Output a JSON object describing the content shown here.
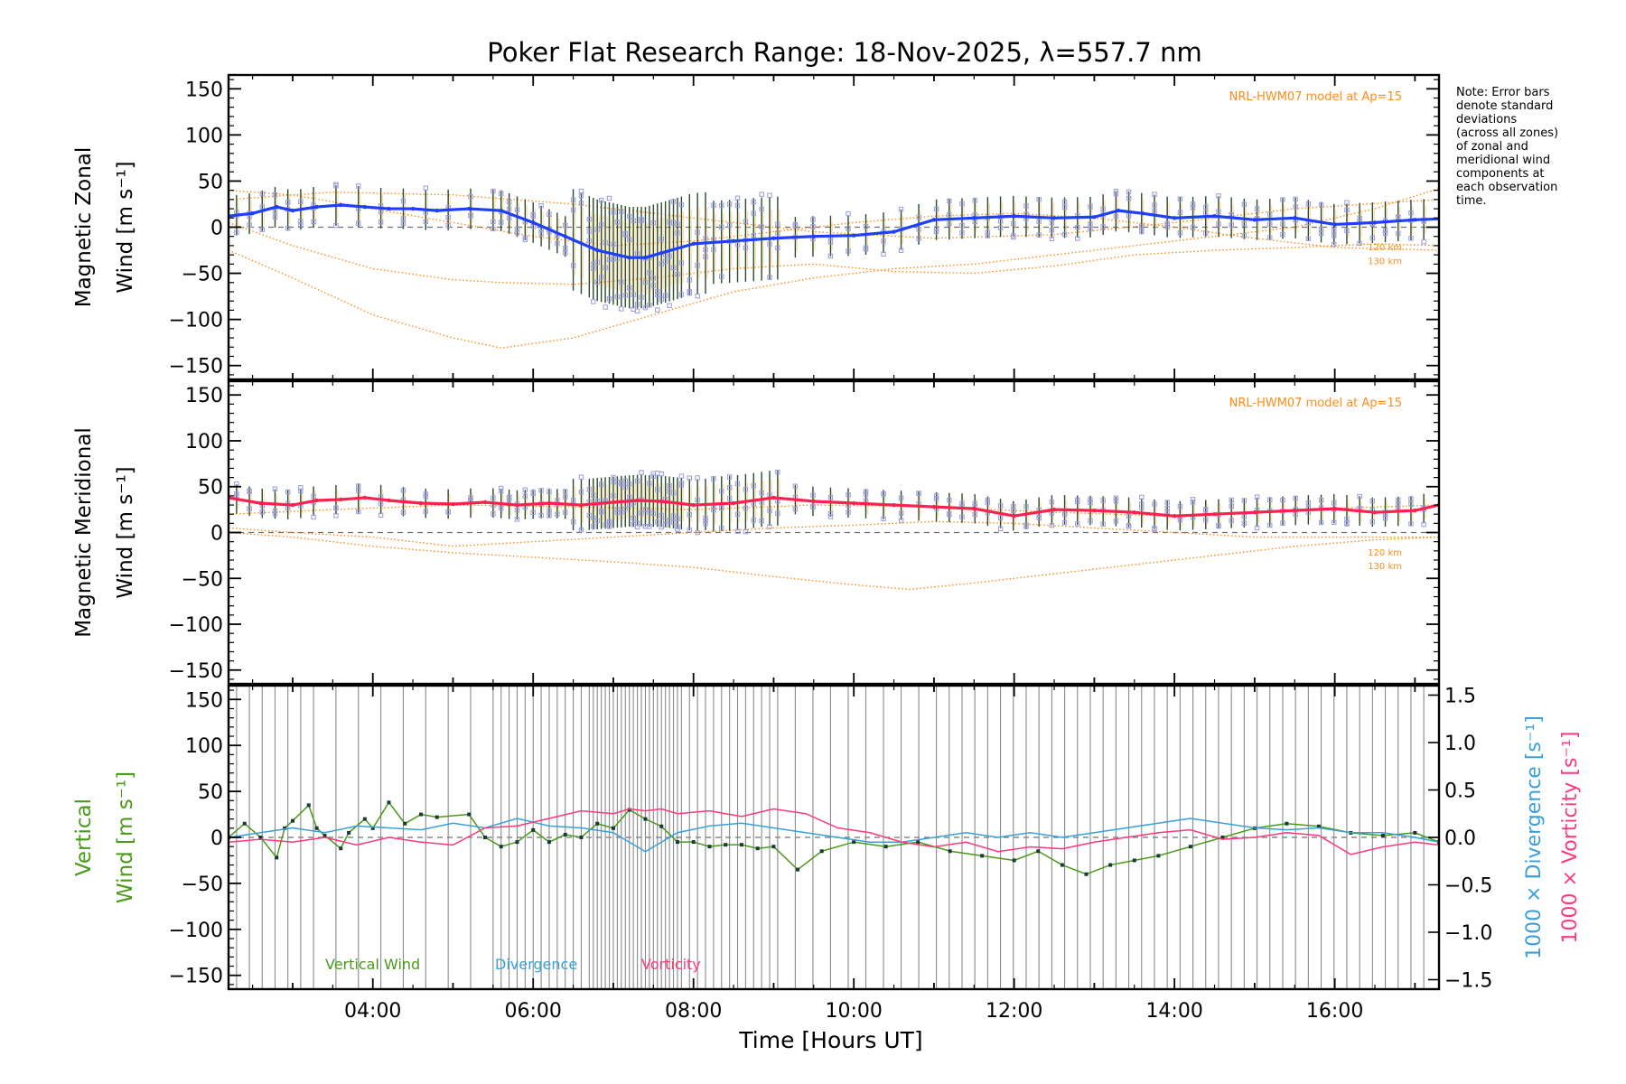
{
  "title": "Poker Flat Research Range: 18-Nov-2025, λ=557.7 nm",
  "note": [
    "Note: Error bars",
    "denote standard",
    "deviations",
    "(across all zones)",
    "of zonal and",
    "meridional wind",
    "components at",
    "each observation",
    "time."
  ],
  "xlabel": "Time [Hours UT]",
  "xticks": [
    "04:00",
    "06:00",
    "08:00",
    "10:00",
    "12:00",
    "14:00",
    "16:00"
  ],
  "colors": {
    "axis": "#000000",
    "model": "#ff8c1a",
    "zonal": "#1f3fff",
    "zonal_light": "#4fa8e0",
    "meridional": "#ff2050",
    "vertical": "#4a9a1a",
    "divergence": "#3aa0d8",
    "vorticity": "#ff3a78",
    "zones": "#9b9bdc",
    "errbar": "#2b4a2b",
    "ortho": "#ffd27a",
    "grid": "#707070"
  },
  "chart_data": [
    {
      "type": "line",
      "panel": "zonal",
      "ylabel_lines": [
        "Magnetic Zonal",
        "Wind [m s⁻¹]"
      ],
      "ylim": [
        -165,
        165
      ],
      "xlim": [
        2.2,
        17.3
      ],
      "yticks": [
        "150",
        "100",
        "50",
        "0",
        "−50",
        "−100",
        "−150"
      ],
      "model_label": "NRL-HWM07 model at Ap=15",
      "model_alt_labels": [
        "120 km",
        "130 km"
      ],
      "series": [
        {
          "name": "Magnetic Zonal Wind",
          "x": [
            2.2,
            2.5,
            2.8,
            3.0,
            3.3,
            3.6,
            3.9,
            4.2,
            4.5,
            4.8,
            5.2,
            5.6,
            6.0,
            6.4,
            6.8,
            7.2,
            7.4,
            7.6,
            8.0,
            8.5,
            9.0,
            9.5,
            10.0,
            10.5,
            11.0,
            11.5,
            12.0,
            12.5,
            13.0,
            13.3,
            13.6,
            14.0,
            14.5,
            15.0,
            15.5,
            16.0,
            16.5,
            17.0,
            17.3
          ],
          "values": [
            12,
            15,
            22,
            18,
            22,
            24,
            22,
            20,
            20,
            18,
            20,
            18,
            5,
            -10,
            -25,
            -33,
            -33,
            -28,
            -18,
            -15,
            -12,
            -10,
            -9,
            -5,
            8,
            10,
            12,
            10,
            11,
            18,
            15,
            10,
            12,
            8,
            10,
            3,
            5,
            8,
            9
          ]
        }
      ],
      "models": [
        {
          "name": "120 km",
          "x": [
            2.2,
            3.0,
            4.0,
            5.0,
            6.0,
            7.0,
            8.0,
            9.0,
            10.0,
            11.0,
            12.0,
            13.0,
            14.0,
            15.0,
            16.0,
            17.3
          ],
          "values": [
            40,
            35,
            20,
            5,
            -10,
            -20,
            -15,
            -5,
            5,
            12,
            15,
            10,
            0,
            -12,
            -22,
            -25
          ]
        },
        {
          "name": "130 km",
          "x": [
            2.2,
            3.0,
            4.0,
            5.0,
            5.6,
            6.5,
            7.5,
            8.5,
            9.5,
            10.5,
            11.5,
            12.5,
            13.5,
            14.5,
            15.5,
            16.5,
            17.3
          ],
          "values": [
            -25,
            -55,
            -95,
            -120,
            -131,
            -120,
            -95,
            -70,
            -55,
            -45,
            -40,
            -30,
            -20,
            -10,
            0,
            20,
            42
          ]
        },
        {
          "name": "model-3",
          "x": [
            2.2,
            3.0,
            4.0,
            5.0,
            5.6,
            6.5,
            7.5,
            8.5,
            9.5,
            10.5,
            11.5,
            12.5,
            13.5,
            14.5,
            15.5,
            16.5,
            17.3
          ],
          "values": [
            5,
            -20,
            -45,
            -57,
            -60,
            -62,
            -55,
            -45,
            -40,
            -48,
            -50,
            -42,
            -30,
            -25,
            -22,
            -18,
            -20
          ]
        },
        {
          "name": "model-4",
          "x": [
            2.2,
            3.5,
            5.0,
            6.5,
            8.0,
            9.5,
            11.0,
            12.5,
            14.0,
            15.5,
            17.3
          ],
          "values": [
            30,
            38,
            35,
            25,
            10,
            -5,
            -12,
            -8,
            5,
            20,
            30
          ]
        }
      ]
    },
    {
      "type": "line",
      "panel": "meridional",
      "ylabel_lines": [
        "Magnetic Meridional",
        "Wind [m s⁻¹]"
      ],
      "ylim": [
        -165,
        165
      ],
      "xlim": [
        2.2,
        17.3
      ],
      "yticks": [
        "150",
        "100",
        "50",
        "0",
        "−50",
        "−100",
        "−150"
      ],
      "model_label": "NRL-HWM07 model at Ap=15",
      "model_alt_labels": [
        "120 km",
        "130 km"
      ],
      "series": [
        {
          "name": "Magnetic Meridional Wind",
          "x": [
            2.2,
            2.6,
            3.0,
            3.3,
            3.6,
            3.9,
            4.2,
            4.6,
            5.0,
            5.4,
            5.8,
            6.2,
            6.6,
            7.0,
            7.3,
            7.6,
            8.0,
            8.5,
            9.0,
            9.5,
            10.0,
            10.5,
            11.0,
            11.5,
            12.0,
            12.5,
            13.0,
            13.5,
            14.0,
            14.5,
            15.0,
            15.5,
            16.0,
            16.5,
            17.0,
            17.3
          ],
          "values": [
            38,
            32,
            30,
            35,
            36,
            38,
            35,
            32,
            31,
            33,
            30,
            32,
            30,
            33,
            35,
            34,
            30,
            32,
            38,
            34,
            32,
            30,
            28,
            26,
            18,
            25,
            24,
            22,
            18,
            20,
            22,
            24,
            26,
            22,
            24,
            30
          ]
        }
      ],
      "models": [
        {
          "name": "120 km",
          "x": [
            2.2,
            3.0,
            4.0,
            5.0,
            6.0,
            7.0,
            8.0,
            9.0,
            10.0,
            11.0,
            12.0,
            13.0,
            14.0,
            15.0,
            16.0,
            17.3
          ],
          "values": [
            5,
            0,
            -5,
            -15,
            -10,
            -5,
            0,
            5,
            8,
            12,
            10,
            5,
            0,
            -5,
            -5,
            -5
          ]
        },
        {
          "name": "130 km",
          "x": [
            2.2,
            3.0,
            4.0,
            5.0,
            6.0,
            7.0,
            8.0,
            9.0,
            10.0,
            10.7,
            11.5,
            12.5,
            13.5,
            14.5,
            15.5,
            16.5,
            17.3
          ],
          "values": [
            0,
            -5,
            -15,
            -22,
            -27,
            -32,
            -38,
            -48,
            -57,
            -62,
            -55,
            -45,
            -35,
            -25,
            -15,
            -8,
            -5
          ]
        },
        {
          "name": "model-3",
          "x": [
            2.2,
            3.5,
            5.0,
            6.5,
            8.0,
            9.5,
            11.0,
            12.5,
            14.0,
            15.5,
            17.3
          ],
          "values": [
            20,
            25,
            30,
            28,
            25,
            30,
            28,
            22,
            18,
            25,
            30
          ]
        }
      ]
    },
    {
      "type": "line",
      "panel": "vertical",
      "ylabel_lines": [
        "Vertical",
        "Wind [m s⁻¹]"
      ],
      "y2label_lines": [
        "1000 × Divergence [s⁻¹]",
        "1000 × Vorticity [s⁻¹]"
      ],
      "ylim": [
        -165,
        165
      ],
      "y2lim": [
        -1.6,
        1.6
      ],
      "xlim": [
        2.2,
        17.3
      ],
      "yticks": [
        "150",
        "100",
        "50",
        "0",
        "−50",
        "−100",
        "−150"
      ],
      "y2ticks": [
        "1.5",
        "1.0",
        "0.5",
        "0.0",
        "−0.5",
        "−1.0",
        "−1.5"
      ],
      "legend": [
        "Vertical Wind",
        "Divergence",
        "Vorticity"
      ],
      "series": [
        {
          "name": "Vertical Wind",
          "axis": "left",
          "x": [
            2.2,
            2.4,
            2.6,
            2.8,
            2.9,
            3.0,
            3.2,
            3.3,
            3.4,
            3.6,
            3.7,
            3.9,
            4.0,
            4.2,
            4.4,
            4.6,
            4.8,
            5.2,
            5.4,
            5.6,
            5.8,
            6.0,
            6.2,
            6.4,
            6.6,
            6.8,
            7.0,
            7.2,
            7.4,
            7.6,
            7.8,
            8.0,
            8.2,
            8.4,
            8.6,
            8.8,
            9.0,
            9.3,
            9.6,
            10.0,
            10.4,
            10.8,
            11.2,
            11.6,
            12.0,
            12.3,
            12.6,
            12.9,
            13.2,
            13.5,
            13.8,
            14.2,
            14.6,
            15.0,
            15.4,
            15.8,
            16.2,
            16.6,
            17.0,
            17.3
          ],
          "values": [
            0,
            15,
            0,
            -22,
            10,
            18,
            35,
            10,
            2,
            -12,
            5,
            20,
            10,
            38,
            15,
            25,
            22,
            25,
            0,
            -10,
            -5,
            8,
            -5,
            3,
            0,
            15,
            10,
            30,
            20,
            12,
            -5,
            -5,
            -10,
            -8,
            -8,
            -12,
            -10,
            -35,
            -15,
            -5,
            -10,
            -5,
            -15,
            -20,
            -25,
            -15,
            -30,
            -40,
            -30,
            -25,
            -20,
            -10,
            0,
            10,
            15,
            12,
            5,
            2,
            5,
            -5
          ]
        },
        {
          "name": "Divergence",
          "axis": "right",
          "x": [
            2.2,
            2.6,
            3.0,
            3.4,
            3.8,
            4.2,
            4.6,
            5.0,
            5.4,
            5.8,
            6.2,
            6.6,
            7.0,
            7.2,
            7.4,
            7.6,
            7.8,
            8.2,
            8.6,
            9.0,
            9.4,
            9.8,
            10.2,
            10.6,
            11.0,
            11.4,
            11.8,
            12.2,
            12.6,
            13.0,
            13.4,
            13.8,
            14.2,
            14.6,
            15.0,
            15.4,
            15.8,
            16.2,
            16.6,
            17.0,
            17.3
          ],
          "values": [
            0.0,
            0.05,
            0.1,
            0.05,
            0.12,
            0.1,
            0.08,
            0.15,
            0.1,
            0.2,
            0.12,
            0.1,
            0.05,
            -0.05,
            -0.15,
            -0.05,
            0.05,
            0.12,
            0.15,
            0.1,
            0.05,
            0.0,
            -0.05,
            -0.05,
            0.0,
            0.05,
            0.0,
            0.05,
            0.0,
            0.05,
            0.1,
            0.15,
            0.2,
            0.15,
            0.1,
            0.08,
            0.1,
            0.05,
            0.05,
            0.0,
            -0.05
          ]
        },
        {
          "name": "Vorticity",
          "axis": "right",
          "x": [
            2.2,
            2.6,
            3.0,
            3.4,
            3.8,
            4.2,
            4.6,
            5.0,
            5.4,
            5.8,
            6.2,
            6.6,
            7.0,
            7.2,
            7.4,
            7.6,
            7.8,
            8.2,
            8.6,
            9.0,
            9.4,
            9.8,
            10.2,
            10.6,
            11.0,
            11.4,
            11.8,
            12.2,
            12.6,
            13.0,
            13.4,
            13.8,
            14.2,
            14.6,
            15.0,
            15.4,
            15.8,
            16.2,
            16.6,
            17.0,
            17.3
          ],
          "values": [
            -0.05,
            -0.02,
            -0.05,
            0.0,
            -0.08,
            0.0,
            -0.05,
            -0.08,
            0.1,
            0.12,
            0.2,
            0.28,
            0.25,
            0.3,
            0.28,
            0.3,
            0.25,
            0.28,
            0.22,
            0.3,
            0.25,
            0.1,
            0.05,
            -0.05,
            -0.1,
            -0.05,
            -0.15,
            -0.1,
            -0.12,
            -0.05,
            0.0,
            0.05,
            0.08,
            -0.02,
            0.0,
            0.05,
            0.02,
            -0.18,
            -0.1,
            -0.05,
            -0.08
          ]
        }
      ]
    }
  ]
}
